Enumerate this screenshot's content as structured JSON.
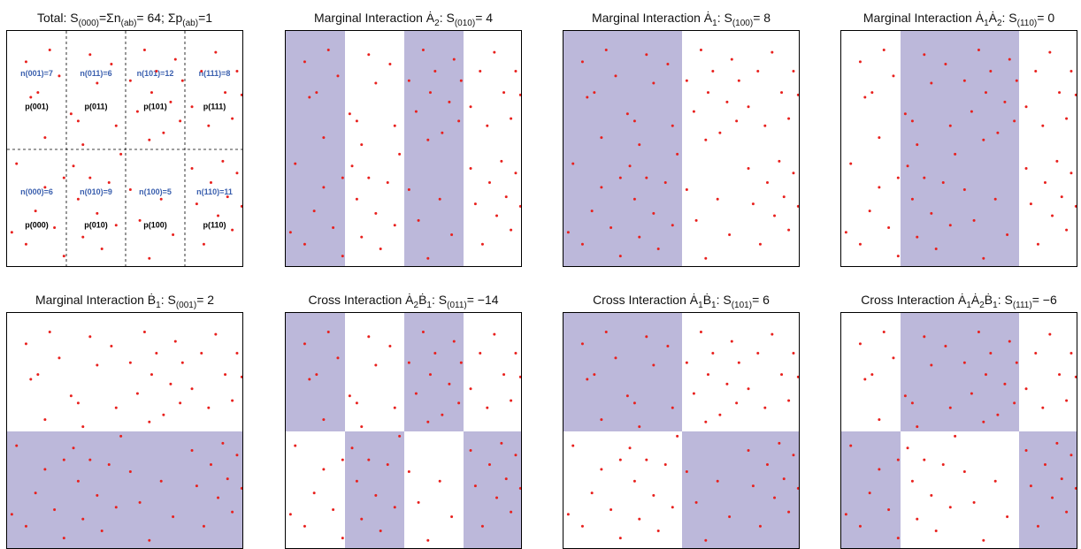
{
  "panels": [
    {
      "id": "total",
      "title": "Total: S(000)=Σn(ab)= 64; Σp(ab)=1",
      "shade": [],
      "grid": true
    },
    {
      "id": "a2",
      "title": "Marginal Interaction Ȧ2: S(010)= 4",
      "shade": [
        [
          0,
          0.25,
          0,
          1
        ],
        [
          0.5,
          0.75,
          0,
          1
        ]
      ],
      "grid": false
    },
    {
      "id": "a1",
      "title": "Marginal Interaction Ȧ1: S(100)= 8",
      "shade": [
        [
          0,
          0.5,
          0,
          1
        ]
      ],
      "grid": false
    },
    {
      "id": "a1a2",
      "title": "Marginal Interaction Ȧ1Ȧ2: S(110)= 0",
      "shade": [
        [
          0.25,
          0.75,
          0,
          1
        ]
      ],
      "grid": false
    },
    {
      "id": "b1",
      "title": "Marginal Interaction Ḃ1: S(001)= 2",
      "shade": [
        [
          0,
          1,
          0.5,
          1
        ]
      ],
      "grid": false
    },
    {
      "id": "a2b1",
      "title": "Cross Interaction Ȧ2Ḃ1: S(011)= −14",
      "shade": [
        [
          0,
          0.25,
          0,
          0.5
        ],
        [
          0.5,
          0.75,
          0,
          0.5
        ],
        [
          0.25,
          0.5,
          0.5,
          1
        ],
        [
          0.75,
          1,
          0.5,
          1
        ]
      ],
      "grid": false
    },
    {
      "id": "a1b1",
      "title": "Cross Interaction Ȧ1Ḃ1: S(101)= 6",
      "shade": [
        [
          0,
          0.5,
          0,
          0.5
        ],
        [
          0.5,
          1,
          0.5,
          1
        ]
      ],
      "grid": false
    },
    {
      "id": "a1a2b1",
      "title": "Cross Interaction Ȧ1Ȧ2Ḃ1: S(111)= −6",
      "shade": [
        [
          0.25,
          0.75,
          0,
          0.5
        ],
        [
          0,
          0.25,
          0.5,
          1
        ],
        [
          0.75,
          1,
          0.5,
          1
        ]
      ],
      "grid": false
    }
  ],
  "cell_labels": [
    {
      "n": "n(001)=7",
      "p": "p(001)",
      "col": 0,
      "row": 0
    },
    {
      "n": "n(011)=6",
      "p": "p(011)",
      "col": 1,
      "row": 0
    },
    {
      "n": "n(101)=12",
      "p": "p(101)",
      "col": 2,
      "row": 0
    },
    {
      "n": "n(111)=8",
      "p": "p(111)",
      "col": 3,
      "row": 0
    },
    {
      "n": "n(000)=6",
      "p": "p(000)",
      "col": 0,
      "row": 1
    },
    {
      "n": "n(010)=9",
      "p": "p(010)",
      "col": 1,
      "row": 1
    },
    {
      "n": "n(100)=5",
      "p": "p(100)",
      "col": 2,
      "row": 1
    },
    {
      "n": "n(110)=11",
      "p": "p(110)",
      "col": 3,
      "row": 1
    }
  ],
  "chart_data": {
    "type": "scatter",
    "xlim": [
      0,
      1
    ],
    "ylim": [
      0,
      1
    ],
    "grid": false,
    "counts": {
      "n001": 7,
      "n011": 6,
      "n101": 12,
      "n111": 8,
      "n000": 6,
      "n010": 9,
      "n100": 5,
      "n110": 11
    },
    "points": [
      [
        0.02,
        0.15
      ],
      [
        0.08,
        0.87
      ],
      [
        0.13,
        0.74
      ],
      [
        0.16,
        0.55
      ],
      [
        0.18,
        0.92
      ],
      [
        0.22,
        0.81
      ],
      [
        0.24,
        0.38
      ],
      [
        0.1,
        0.72
      ],
      [
        0.27,
        0.65
      ],
      [
        0.3,
        0.62
      ],
      [
        0.35,
        0.9
      ],
      [
        0.38,
        0.78
      ],
      [
        0.32,
        0.52
      ],
      [
        0.44,
        0.86
      ],
      [
        0.46,
        0.6
      ],
      [
        0.52,
        0.79
      ],
      [
        0.55,
        0.66
      ],
      [
        0.58,
        0.92
      ],
      [
        0.61,
        0.74
      ],
      [
        0.63,
        0.83
      ],
      [
        0.66,
        0.57
      ],
      [
        0.69,
        0.7
      ],
      [
        0.71,
        0.88
      ],
      [
        0.73,
        0.62
      ],
      [
        0.74,
        0.79
      ],
      [
        0.6,
        0.54
      ],
      [
        0.78,
        0.68
      ],
      [
        0.82,
        0.83
      ],
      [
        0.85,
        0.6
      ],
      [
        0.88,
        0.91
      ],
      [
        0.92,
        0.74
      ],
      [
        0.95,
        0.63
      ],
      [
        0.97,
        0.83
      ],
      [
        0.99,
        0.73
      ],
      [
        0.04,
        0.44
      ],
      [
        0.08,
        0.1
      ],
      [
        0.12,
        0.24
      ],
      [
        0.16,
        0.34
      ],
      [
        0.2,
        0.17
      ],
      [
        0.24,
        0.05
      ],
      [
        0.28,
        0.43
      ],
      [
        0.3,
        0.29
      ],
      [
        0.32,
        0.13
      ],
      [
        0.35,
        0.38
      ],
      [
        0.38,
        0.23
      ],
      [
        0.4,
        0.08
      ],
      [
        0.43,
        0.36
      ],
      [
        0.46,
        0.18
      ],
      [
        0.48,
        0.48
      ],
      [
        0.52,
        0.33
      ],
      [
        0.56,
        0.2
      ],
      [
        0.6,
        0.04
      ],
      [
        0.65,
        0.29
      ],
      [
        0.7,
        0.14
      ],
      [
        0.78,
        0.42
      ],
      [
        0.8,
        0.27
      ],
      [
        0.83,
        0.1
      ],
      [
        0.86,
        0.36
      ],
      [
        0.89,
        0.22
      ],
      [
        0.91,
        0.45
      ],
      [
        0.93,
        0.3
      ],
      [
        0.95,
        0.16
      ],
      [
        0.97,
        0.4
      ],
      [
        0.99,
        0.26
      ]
    ]
  }
}
